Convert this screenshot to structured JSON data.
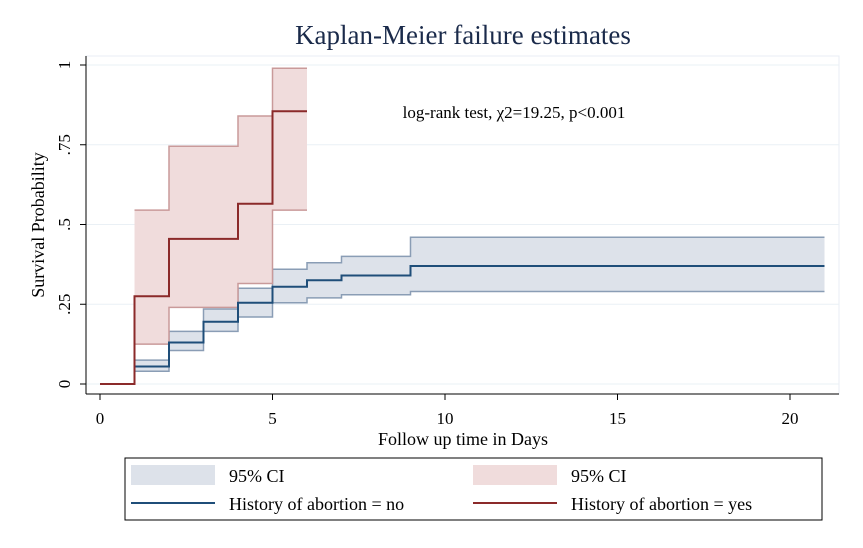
{
  "chart_data": {
    "type": "line",
    "step": true,
    "title": "Kaplan-Meier failure estimates",
    "xlabel": "Follow up time in Days",
    "ylabel": "Survival Probability",
    "xlim": [
      0,
      21
    ],
    "ylim": [
      0,
      1
    ],
    "xticks": [
      0,
      5,
      10,
      15,
      20
    ],
    "yticks": [
      0,
      0.25,
      0.5,
      0.75,
      1
    ],
    "ytick_labels": [
      "0",
      ".25",
      ".5",
      ".75",
      "1"
    ],
    "annotation": "log-rank test, χ2=19.25, p<0.001",
    "legend": {
      "position": "bottom",
      "entries": [
        {
          "label": "95% CI",
          "kind": "band",
          "series": "no"
        },
        {
          "label": "95% CI",
          "kind": "band",
          "series": "yes"
        },
        {
          "label": "History of abortion = no",
          "kind": "line",
          "series": "no"
        },
        {
          "label": "History of abortion = yes",
          "kind": "line",
          "series": "yes"
        }
      ]
    },
    "series": [
      {
        "name": "History of abortion = no",
        "key": "no",
        "line_color": "#1f4e79",
        "band_fill": "#dde2ea",
        "band_stroke": "#8a9db5",
        "x": [
          0,
          1,
          2,
          3,
          4,
          5,
          6,
          7,
          9,
          21
        ],
        "y": [
          0,
          0.055,
          0.13,
          0.195,
          0.255,
          0.305,
          0.325,
          0.34,
          0.37,
          0.37
        ],
        "lower": [
          0,
          0.04,
          0.105,
          0.165,
          0.21,
          0.255,
          0.27,
          0.28,
          0.29,
          0.29
        ],
        "upper": [
          0,
          0.075,
          0.165,
          0.235,
          0.3,
          0.36,
          0.38,
          0.4,
          0.46,
          0.46
        ]
      },
      {
        "name": "History of abortion = yes",
        "key": "yes",
        "line_color": "#8b2a2a",
        "band_fill": "#f0dcdc",
        "band_stroke": "#c99a9a",
        "x": [
          0,
          1,
          2,
          4,
          5,
          6
        ],
        "y": [
          0,
          0.275,
          0.455,
          0.565,
          0.855,
          0.855
        ],
        "lower": [
          0,
          0.125,
          0.24,
          0.315,
          0.545,
          0.545
        ],
        "upper": [
          0,
          0.545,
          0.745,
          0.84,
          0.99,
          0.99
        ]
      }
    ]
  }
}
